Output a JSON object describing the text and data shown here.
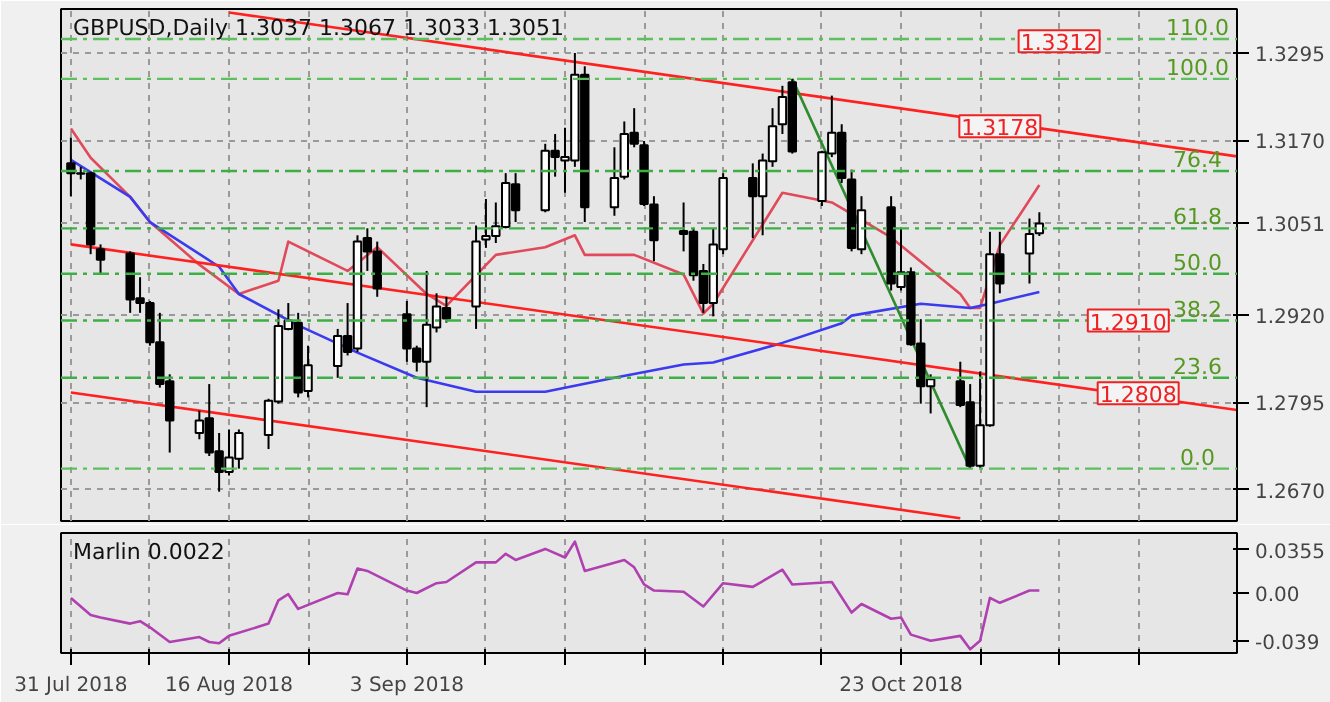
{
  "chart_data": [
    {
      "type": "candlestick",
      "title": "GBPUSD,Daily  1.3037 1.3067 1.3033 1.3051",
      "grid": true,
      "tick_labels": "y",
      "x": [
        "2018-07-31",
        "2018-08-01",
        "2018-08-02",
        "2018-08-03",
        "2018-08-06",
        "2018-08-07",
        "2018-08-08",
        "2018-08-09",
        "2018-08-10",
        "2018-08-13",
        "2018-08-14",
        "2018-08-15",
        "2018-08-16",
        "2018-08-17",
        "2018-08-20",
        "2018-08-21",
        "2018-08-22",
        "2018-08-23",
        "2018-08-24",
        "2018-08-27",
        "2018-08-28",
        "2018-08-29",
        "2018-08-30",
        "2018-08-31",
        "2018-09-03",
        "2018-09-04",
        "2018-09-05",
        "2018-09-06",
        "2018-09-07",
        "2018-09-10",
        "2018-09-11",
        "2018-09-12",
        "2018-09-13",
        "2018-09-14",
        "2018-09-17",
        "2018-09-18",
        "2018-09-19",
        "2018-09-20",
        "2018-09-21",
        "2018-09-24",
        "2018-09-25",
        "2018-09-26",
        "2018-09-27",
        "2018-09-28",
        "2018-10-01",
        "2018-10-02",
        "2018-10-03",
        "2018-10-04",
        "2018-10-05",
        "2018-10-08",
        "2018-10-09",
        "2018-10-10",
        "2018-10-11",
        "2018-10-12",
        "2018-10-15",
        "2018-10-16",
        "2018-10-17",
        "2018-10-18",
        "2018-10-19",
        "2018-10-22",
        "2018-10-23",
        "2018-10-24",
        "2018-10-25",
        "2018-10-26",
        "2018-10-29",
        "2018-10-30",
        "2018-10-31",
        "2018-11-01",
        "2018-11-02",
        "2018-11-05",
        "2018-11-06"
      ],
      "ohlc": [
        [
          1.3137,
          1.3174,
          1.309,
          1.3123
        ],
        [
          1.3123,
          1.3132,
          1.3114,
          1.3122
        ],
        [
          1.3123,
          1.3125,
          1.3007,
          1.3021
        ],
        [
          1.3014,
          1.3021,
          1.2979,
          1.2999
        ],
        [
          1.3008,
          1.3011,
          1.2923,
          1.2942
        ],
        [
          1.2944,
          1.2974,
          1.2923,
          1.2937
        ],
        [
          1.2937,
          1.294,
          1.2876,
          1.2881
        ],
        [
          1.2881,
          1.2923,
          1.2816,
          1.2821
        ],
        [
          1.2825,
          1.2835,
          1.2723,
          1.2769
        ],
        [
          1.2751,
          1.2783,
          1.2742,
          1.2769
        ],
        [
          1.2772,
          1.2821,
          1.2718,
          1.2723
        ],
        [
          1.2725,
          1.2751,
          1.2667,
          1.2695
        ],
        [
          1.2695,
          1.2756,
          1.269,
          1.2716
        ],
        [
          1.2714,
          1.2756,
          1.27,
          1.2751
        ],
        [
          1.2748,
          1.28,
          1.2728,
          1.2797
        ],
        [
          1.2796,
          1.2928,
          1.2793,
          1.2904
        ],
        [
          1.29,
          1.2937,
          1.2898,
          1.2912
        ],
        [
          1.2909,
          1.2923,
          1.2802,
          1.2809
        ],
        [
          1.2811,
          1.2876,
          1.2802,
          1.2848
        ],
        [
          1.2847,
          1.29,
          1.283,
          1.289
        ],
        [
          1.289,
          1.2937,
          1.2862,
          1.2867
        ],
        [
          1.2872,
          1.3034,
          1.2867,
          1.3025
        ],
        [
          1.303,
          1.3044,
          1.2983,
          1.3011
        ],
        [
          1.3011,
          1.3025,
          1.2946,
          1.2958
        ],
        [
          1.2921,
          1.294,
          1.2853,
          1.2872
        ],
        [
          1.2872,
          1.2876,
          1.2839,
          1.2853
        ],
        [
          1.2853,
          1.2983,
          1.2788,
          1.2906
        ],
        [
          1.2902,
          1.2951,
          1.2895,
          1.2932
        ],
        [
          1.293,
          1.2946,
          1.2909,
          1.2915
        ],
        [
          1.2932,
          1.3048,
          1.29,
          1.3025
        ],
        [
          1.3028,
          1.3086,
          1.3016,
          1.3033
        ],
        [
          1.3033,
          1.3081,
          1.3023,
          1.3047
        ],
        [
          1.3046,
          1.3123,
          1.3044,
          1.3109
        ],
        [
          1.3107,
          1.3123,
          1.3053,
          1.307
        ],
        [
          1.307,
          1.3165,
          1.3067,
          1.3155
        ],
        [
          1.3155,
          1.3179,
          1.3118,
          1.3146
        ],
        [
          1.3141,
          1.3188,
          1.3095,
          1.3146
        ],
        [
          1.3141,
          1.3295,
          1.3132,
          1.3264
        ],
        [
          1.3264,
          1.3276,
          1.3053,
          1.3074
        ],
        [
          1.3074,
          1.316,
          1.3062,
          1.3116
        ],
        [
          1.3118,
          1.3197,
          1.3114,
          1.3179
        ],
        [
          1.3181,
          1.3216,
          1.316,
          1.3165
        ],
        [
          1.3163,
          1.3169,
          1.3076,
          1.3079
        ],
        [
          1.3078,
          1.309,
          1.2997,
          1.3027
        ],
        [
          1.304,
          1.3081,
          1.3011,
          1.3036
        ],
        [
          1.3039,
          1.3044,
          1.2969,
          1.2977
        ],
        [
          1.2983,
          1.2993,
          1.2923,
          1.2937
        ],
        [
          1.2937,
          1.3044,
          1.2918,
          1.3021
        ],
        [
          1.3014,
          1.3123,
          1.3007,
          1.3116
        ],
        [
          1.3116,
          1.3137,
          1.303,
          1.309
        ],
        [
          1.309,
          1.3151,
          1.3034,
          1.3141
        ],
        [
          1.314,
          1.3216,
          1.3132,
          1.319
        ],
        [
          1.3193,
          1.3248,
          1.3179,
          1.3232
        ],
        [
          1.3253,
          1.3258,
          1.3151,
          1.3154
        ],
        [
          1.3083,
          1.3155,
          1.3076,
          1.3153
        ],
        [
          1.3151,
          1.3234,
          1.3146,
          1.3181
        ],
        [
          1.3181,
          1.3193,
          1.3109,
          1.3116
        ],
        [
          1.3114,
          1.3128,
          1.3011,
          1.3016
        ],
        [
          1.3014,
          1.309,
          1.3007,
          1.307
        ],
        [
          1.3074,
          1.309,
          1.2955,
          1.2965
        ],
        [
          1.296,
          1.3044,
          1.2955,
          1.2981
        ],
        [
          1.2981,
          1.2988,
          1.2876,
          1.2878
        ],
        [
          1.2879,
          1.2914,
          1.2793,
          1.2818
        ],
        [
          1.2818,
          1.2835,
          1.2779,
          1.2828
        ],
        [
          1.2825,
          1.2853,
          1.2788,
          1.2791
        ],
        [
          1.2795,
          1.2821,
          1.27,
          1.2704
        ],
        [
          1.2704,
          1.2839,
          1.27,
          1.2762
        ],
        [
          1.2762,
          1.3039,
          1.276,
          1.3007
        ],
        [
          1.3007,
          1.3039,
          1.2951,
          1.2965
        ],
        [
          1.3008,
          1.3058,
          1.2965,
          1.3036
        ],
        [
          1.3037,
          1.3067,
          1.3033,
          1.3051
        ]
      ],
      "series": [
        {
          "type": "line",
          "color": "#e04a5a",
          "x": [
            "2018-07-31",
            "2018-08-02",
            "2018-08-06",
            "2018-08-08",
            "2018-08-13",
            "2018-08-17",
            "2018-08-21",
            "2018-08-22",
            "2018-08-28",
            "2018-08-31",
            "2018-09-05",
            "2018-09-07",
            "2018-09-12",
            "2018-09-17",
            "2018-09-20",
            "2018-09-21",
            "2018-09-26",
            "2018-10-01",
            "2018-10-03",
            "2018-10-04",
            "2018-10-11",
            "2018-10-16",
            "2018-10-17",
            "2018-10-22",
            "2018-10-29",
            "2018-10-30",
            "2018-10-31",
            "2018-11-02",
            "2018-11-06"
          ],
          "values": [
            1.3187,
            1.3145,
            1.3089,
            1.3053,
            1.2992,
            1.295,
            1.2969,
            1.3025,
            1.2983,
            1.3017,
            1.295,
            1.2933,
            1.3006,
            1.3017,
            1.3034,
            1.3006,
            1.3006,
            1.2978,
            1.2922,
            1.2936,
            1.3095,
            1.3081,
            1.3073,
            1.3031,
            1.295,
            1.293,
            1.293,
            1.302,
            1.3106
          ]
        },
        {
          "type": "line",
          "color": "#3a3aee",
          "x": [
            "2018-07-31",
            "2018-08-06",
            "2018-08-08",
            "2018-08-15",
            "2018-08-17",
            "2018-08-23",
            "2018-08-29",
            "2018-09-04",
            "2018-09-10",
            "2018-09-17",
            "2018-09-24",
            "2018-10-01",
            "2018-10-04",
            "2018-10-11",
            "2018-10-17",
            "2018-10-18",
            "2018-10-25",
            "2018-10-30",
            "2018-11-01",
            "2018-11-06"
          ],
          "values": [
            1.3142,
            1.3089,
            1.3053,
            1.2989,
            1.295,
            1.2905,
            1.2866,
            1.283,
            1.281,
            1.281,
            1.283,
            1.2849,
            1.2852,
            1.288,
            1.2908,
            1.2919,
            1.2936,
            1.293,
            1.2936,
            1.2953
          ]
        },
        {
          "type": "line",
          "color": "#ff2020",
          "x": [
            "2018-08-16",
            "2018-11-26"
          ],
          "values": [
            1.3353,
            1.3147
          ]
        },
        {
          "type": "line",
          "color": "#ff2020",
          "x": [
            "2018-07-31",
            "2018-11-26"
          ],
          "values": [
            1.3021,
            1.2784
          ]
        },
        {
          "type": "line",
          "color": "#ff2020",
          "x": [
            "2018-07-31",
            "2018-10-29"
          ],
          "values": [
            1.2809,
            1.2629
          ]
        },
        {
          "type": "line",
          "color": "#2e8b2e",
          "x": [
            "2018-10-12",
            "2018-10-30"
          ],
          "values": [
            1.3258,
            1.27
          ]
        }
      ],
      "ref_lines": [
        {
          "axis": "y",
          "value": 1.3315,
          "color": "#5cc05c",
          "line_style": "dashed"
        },
        {
          "axis": "y",
          "value": 1.3258,
          "color": "#5cc05c",
          "line_style": "dashed"
        },
        {
          "axis": "y",
          "value": 1.3126,
          "color": "#3cb043",
          "line_style": "dashed"
        },
        {
          "axis": "y",
          "value": 1.3044,
          "color": "#3cb043",
          "line_style": "dashed"
        },
        {
          "axis": "y",
          "value": 1.2979,
          "color": "#3cb043",
          "line_style": "dashed"
        },
        {
          "axis": "y",
          "value": 1.2912,
          "color": "#3cb043",
          "line_style": "dashed"
        },
        {
          "axis": "y",
          "value": 1.283,
          "color": "#3cb043",
          "line_style": "dashed"
        },
        {
          "axis": "y",
          "value": 1.27,
          "color": "#5cc05c",
          "line_style": "dashed"
        }
      ],
      "annotations": [
        {
          "text": "1.3312",
          "x": "2018-11-08",
          "y": 1.3312
        },
        {
          "text": "1.3178",
          "x": "2018-11-02",
          "y": 1.319
        },
        {
          "text": "1.2910",
          "x": "2018-11-15",
          "y": 1.2912
        },
        {
          "text": "1.2808",
          "x": "2018-11-16",
          "y": 1.2808
        },
        {
          "text": "110.0",
          "x": "2018-11-22",
          "y": 1.3315
        },
        {
          "text": "100.0",
          "x": "2018-11-22",
          "y": 1.3258
        },
        {
          "text": "76.4",
          "x": "2018-11-22",
          "y": 1.3126
        },
        {
          "text": "61.8",
          "x": "2018-11-22",
          "y": 1.3044
        },
        {
          "text": "50.0",
          "x": "2018-11-22",
          "y": 1.2979
        },
        {
          "text": "38.2",
          "x": "2018-11-22",
          "y": 1.2912
        },
        {
          "text": "23.6",
          "x": "2018-11-22",
          "y": 1.283
        },
        {
          "text": "0.0",
          "x": "2018-11-22",
          "y": 1.27
        }
      ],
      "xlim": [
        "2018-07-30",
        "2018-11-26"
      ],
      "xticks": [
        {
          "value": "2018-07-31",
          "label": null
        },
        {
          "value": "2018-08-08",
          "label": null
        },
        {
          "value": "2018-08-16",
          "label": null
        },
        {
          "value": "2018-08-24",
          "label": null
        },
        {
          "value": "2018-09-03",
          "label": null
        },
        {
          "value": "2018-09-11",
          "label": null
        },
        {
          "value": "2018-09-19",
          "label": null
        },
        {
          "value": "2018-09-27",
          "label": null
        },
        {
          "value": "2018-10-05",
          "label": null
        },
        {
          "value": "2018-10-15",
          "label": null
        },
        {
          "value": "2018-10-23",
          "label": null
        },
        {
          "value": "2018-10-31",
          "label": null
        },
        {
          "value": "2018-11-08",
          "label": null
        },
        {
          "value": "2018-11-16",
          "label": null
        }
      ],
      "ylim": [
        1.2625,
        1.3358
      ],
      "yticks": [
        1.3295,
        {
          "value": 1.317,
          "label": "1.3170"
        },
        1.3051,
        {
          "value": 1.292,
          "label": "1.2920"
        },
        1.2795,
        {
          "value": 1.267,
          "label": "1.2670"
        }
      ]
    },
    {
      "type": "line",
      "title": "Marlin 0.0022",
      "grid": "x",
      "series": [
        {
          "color": "#b040b0",
          "x": [
            "2018-07-31",
            "2018-08-02",
            "2018-08-03",
            "2018-08-06",
            "2018-08-07",
            "2018-08-08",
            "2018-08-10",
            "2018-08-13",
            "2018-08-14",
            "2018-08-15",
            "2018-08-16",
            "2018-08-20",
            "2018-08-21",
            "2018-08-22",
            "2018-08-23",
            "2018-08-27",
            "2018-08-28",
            "2018-08-29",
            "2018-08-30",
            "2018-09-03",
            "2018-09-04",
            "2018-09-06",
            "2018-09-07",
            "2018-09-10",
            "2018-09-12",
            "2018-09-13",
            "2018-09-14",
            "2018-09-17",
            "2018-09-19",
            "2018-09-20",
            "2018-09-21",
            "2018-09-25",
            "2018-09-26",
            "2018-09-27",
            "2018-09-28",
            "2018-10-01",
            "2018-10-03",
            "2018-10-05",
            "2018-10-08",
            "2018-10-11",
            "2018-10-12",
            "2018-10-16",
            "2018-10-18",
            "2018-10-19",
            "2018-10-22",
            "2018-10-23",
            "2018-10-24",
            "2018-10-26",
            "2018-10-29",
            "2018-10-30",
            "2018-10-31",
            "2018-11-01",
            "2018-11-02",
            "2018-11-05",
            "2018-11-06"
          ],
          "values": [
            -0.004,
            -0.018,
            -0.02,
            -0.025,
            -0.023,
            -0.028,
            -0.04,
            -0.036,
            -0.04,
            -0.041,
            -0.035,
            -0.025,
            -0.006,
            -0.001,
            -0.013,
            0.0,
            -0.001,
            0.02,
            0.018,
            0.002,
            0.0,
            0.008,
            0.009,
            0.025,
            0.025,
            0.032,
            0.027,
            0.036,
            0.029,
            0.042,
            0.018,
            0.027,
            0.021,
            0.007,
            0.002,
            0.001,
            -0.011,
            0.008,
            0.005,
            0.019,
            0.007,
            0.009,
            -0.016,
            -0.009,
            -0.021,
            -0.02,
            -0.034,
            -0.039,
            -0.035,
            -0.046,
            -0.039,
            -0.004,
            -0.008,
            0.002,
            0.002
          ]
        }
      ],
      "xlim": [
        "2018-07-30",
        "2018-11-26"
      ],
      "xticks": [
        {
          "value": "2018-07-31",
          "label": "31 Jul 2018"
        },
        {
          "value": "2018-08-08",
          "label": null
        },
        {
          "value": "2018-08-16",
          "label": "16 Aug 2018"
        },
        {
          "value": "2018-08-24",
          "label": null
        },
        {
          "value": "2018-09-03",
          "label": "3 Sep 2018"
        },
        {
          "value": "2018-09-11",
          "label": null
        },
        {
          "value": "2018-09-19",
          "label": null
        },
        {
          "value": "2018-09-27",
          "label": null
        },
        {
          "value": "2018-10-05",
          "label": null
        },
        {
          "value": "2018-10-15",
          "label": null
        },
        {
          "value": "2018-10-23",
          "label": "23 Oct 2018"
        },
        {
          "value": "2018-10-31",
          "label": null
        },
        {
          "value": "2018-11-08",
          "label": null
        },
        {
          "value": "2018-11-16",
          "label": null
        }
      ],
      "ylim": [
        -0.049,
        0.049
      ],
      "yticks": [
        0.0355,
        {
          "value": 0,
          "label": "0.00"
        },
        -0.039
      ]
    }
  ]
}
